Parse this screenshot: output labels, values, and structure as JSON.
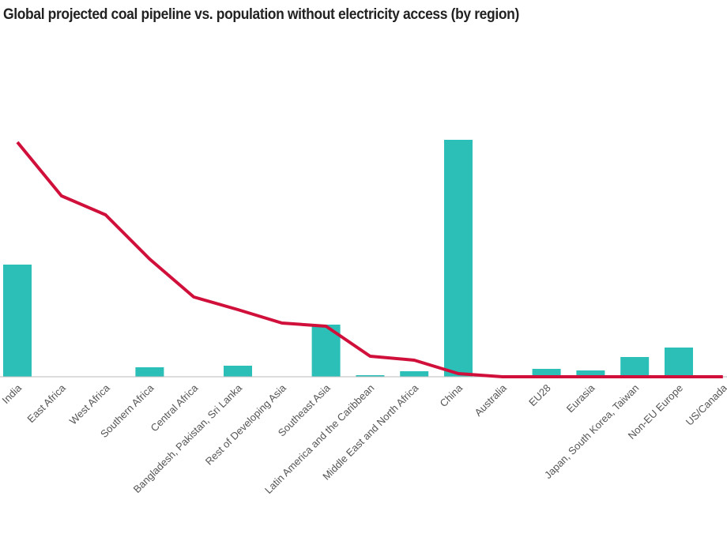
{
  "chart_data": {
    "type": "bar",
    "title": "Global projected coal pipeline vs. population without electricity access (by region)",
    "xlabel": "",
    "ylabel": "",
    "ylim": [
      0,
      300
    ],
    "grid": false,
    "categories": [
      "India",
      "East Africa",
      "West Africa",
      "Southern Africa",
      "Central Africa",
      "Bangladesh, Pakistan, Sri Lanka",
      "Rest of Developing Asia",
      "Southeast Asia",
      "Latin America and the Caribbean",
      "Middle East and North Africa",
      "China",
      "Australia",
      "EU28",
      "Eurasia",
      "Japan, South Korea, Taiwan",
      "Non-EU Europe",
      "US/Canada"
    ],
    "series": [
      {
        "name": "Projected coal pipeline",
        "kind": "bar",
        "color": "#2bbfb8",
        "values": [
          142,
          0,
          0,
          12,
          0,
          14,
          0,
          66,
          2,
          7,
          300,
          0,
          10,
          8,
          25,
          37,
          0
        ]
      },
      {
        "name": "Population without electricity access",
        "kind": "line",
        "color": "#d0103a",
        "values": [
          297,
          229,
          205,
          149,
          101,
          85,
          68,
          64,
          26,
          21,
          4,
          0,
          0,
          0,
          0,
          0,
          0
        ]
      }
    ]
  }
}
